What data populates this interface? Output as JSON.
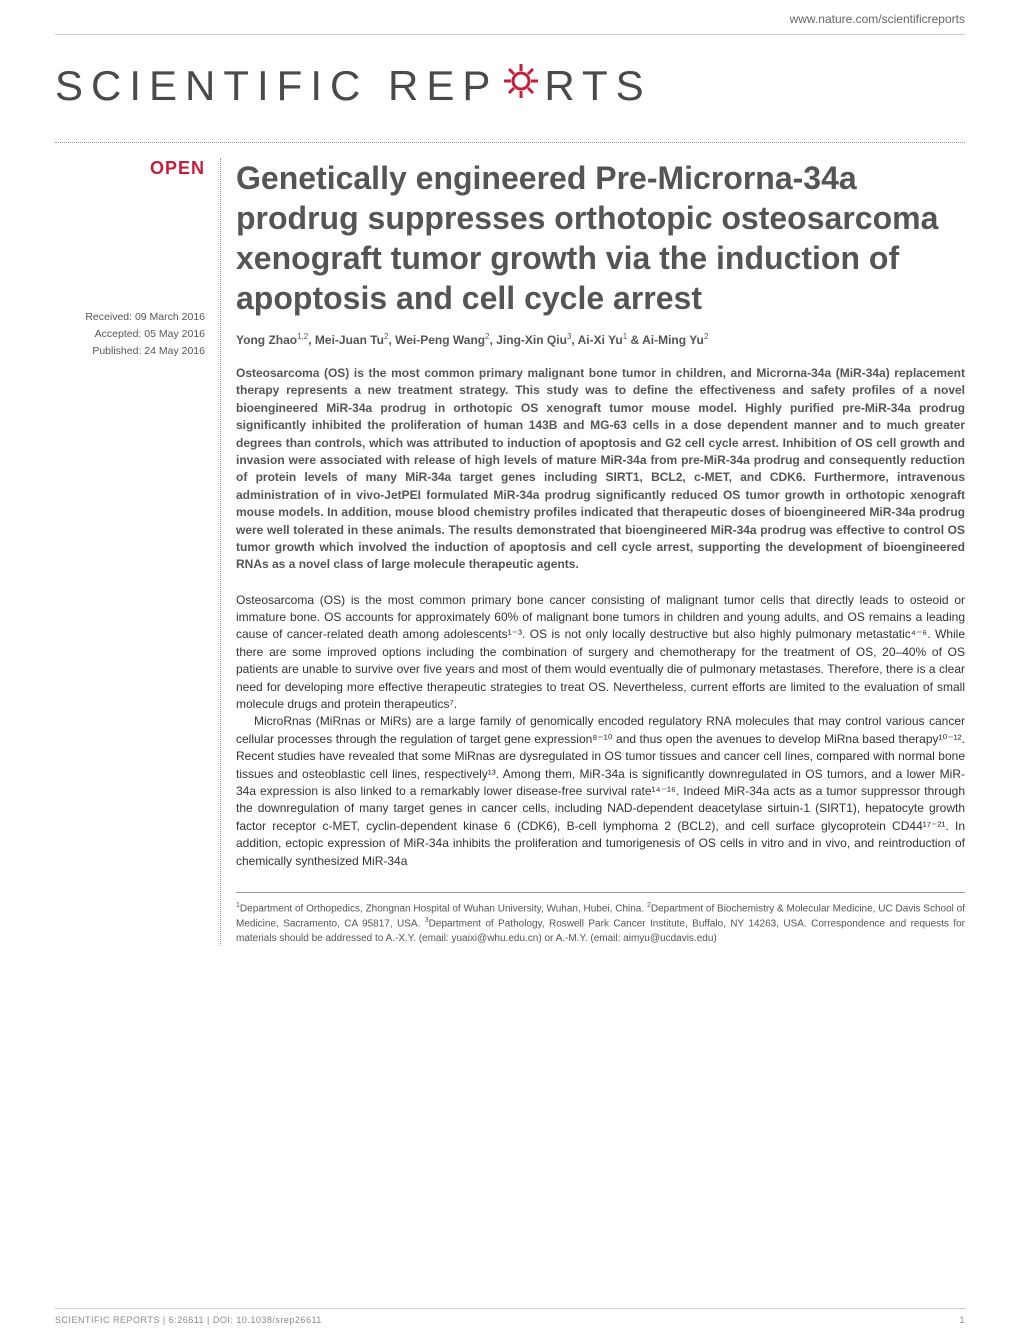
{
  "header": {
    "url": "www.nature.com/scientificreports"
  },
  "logo": {
    "text_before": "SCIENTIFIC REP",
    "text_after": "RTS",
    "gear_color": "#c41e3a"
  },
  "badge": {
    "open": "OPEN"
  },
  "meta": {
    "received": "Received: 09 March 2016",
    "accepted": "Accepted: 05 May 2016",
    "published": "Published: 24 May 2016"
  },
  "article": {
    "title": "Genetically engineered Pre-Microrna-34a prodrug suppresses orthotopic osteosarcoma xenograft tumor growth via the induction of apoptosis and cell cycle arrest",
    "authors_html": "Yong Zhao<sup>1,2</sup>, Mei-Juan Tu<sup>2</sup>, Wei-Peng Wang<sup>2</sup>, Jing-Xin Qiu<sup>3</sup>, Ai-Xi Yu<sup>1</sup> & Ai-Ming Yu<sup>2</sup>",
    "abstract": "Osteosarcoma (OS) is the most common primary malignant bone tumor in children, and Microrna-34a (MiR-34a) replacement therapy represents a new treatment strategy. This study was to define the effectiveness and safety profiles of a novel bioengineered MiR-34a prodrug in orthotopic OS xenograft tumor mouse model. Highly purified pre-MiR-34a prodrug significantly inhibited the proliferation of human 143B and MG-63 cells in a dose dependent manner and to much greater degrees than controls, which was attributed to induction of apoptosis and G2 cell cycle arrest. Inhibition of OS cell growth and invasion were associated with release of high levels of mature MiR-34a from pre-MiR-34a prodrug and consequently reduction of protein levels of many MiR-34a target genes including SIRT1, BCL2, c-MET, and CDK6. Furthermore, intravenous administration of in vivo-JetPEI formulated MiR-34a prodrug significantly reduced OS tumor growth in orthotopic xenograft mouse models. In addition, mouse blood chemistry profiles indicated that therapeutic doses of bioengineered MiR-34a prodrug were well tolerated in these animals. The results demonstrated that bioengineered MiR-34a prodrug was effective to control OS tumor growth which involved the induction of apoptosis and cell cycle arrest, supporting the development of bioengineered RNAs as a novel class of large molecule therapeutic agents.",
    "paragraphs": [
      "Osteosarcoma (OS) is the most common primary bone cancer consisting of malignant tumor cells that directly leads to osteoid or immature bone. OS accounts for approximately 60% of malignant bone tumors in children and young adults, and OS remains a leading cause of cancer-related death among adolescents¹⁻³. OS is not only locally destructive but also highly pulmonary metastatic⁴⁻⁶. While there are some improved options including the combination of surgery and chemotherapy for the treatment of OS, 20–40% of OS patients are unable to survive over five years and most of them would eventually die of pulmonary metastases. Therefore, there is a clear need for developing more effective therapeutic strategies to treat OS. Nevertheless, current efforts are limited to the evaluation of small molecule drugs and protein therapeutics⁷.",
      "MicroRnas (MiRnas or MiRs) are a large family of genomically encoded regulatory RNA molecules that may control various cancer cellular processes through the regulation of target gene expression⁸⁻¹⁰ and thus open the avenues to develop MiRna based therapy¹⁰⁻¹². Recent studies have revealed that some MiRnas are dysregulated in OS tumor tissues and cancer cell lines, compared with normal bone tissues and osteoblastic cell lines, respectively¹³. Among them, MiR-34a is significantly downregulated in OS tumors, and a lower MiR-34a expression is also linked to a remarkably lower disease-free survival rate¹⁴⁻¹⁶. Indeed MiR-34a acts as a tumor suppressor through the downregulation of many target genes in cancer cells, including NAD-dependent deacetylase sirtuin-1 (SIRT1), hepatocyte growth factor receptor c-MET, cyclin-dependent kinase 6 (CDK6), B-cell lymphoma 2 (BCL2), and cell surface glycoprotein CD44¹⁷⁻²¹. In addition, ectopic expression of MiR-34a inhibits the proliferation and tumorigenesis of OS cells in vitro and in vivo, and reintroduction of chemically synthesized MiR-34a"
    ],
    "affiliations_html": "<sup>1</sup>Department of Orthopedics, Zhongnan Hospital of Wuhan University, Wuhan, Hubei, China. <sup>2</sup>Department of Biochemistry & Molecular Medicine, UC Davis School of Medicine, Sacramento, CA 95817, USA. <sup>3</sup>Department of Pathology, Roswell Park Cancer Institute, Buffalo, NY 14263, USA. Correspondence and requests for materials should be addressed to A.-X.Y. (email: yuaixi@whu.edu.cn) or A.-M.Y. (email: aimyu@ucdavis.edu)"
  },
  "footer": {
    "citation": "SCIENTIFIC REPORTS | 6:26611 | DOI: 10.1038/srep26611",
    "page": "1"
  }
}
